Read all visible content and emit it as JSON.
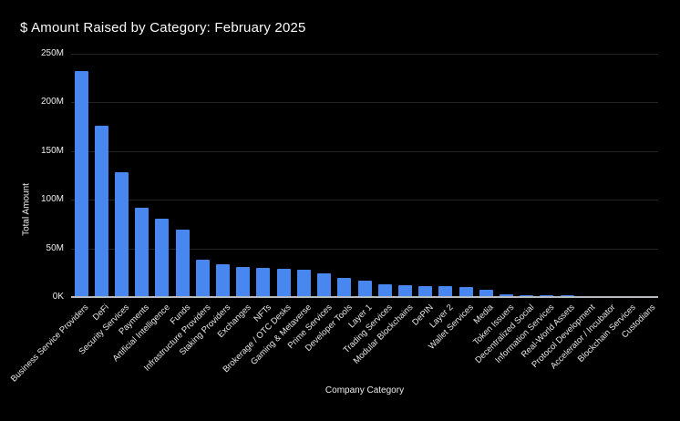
{
  "colors": {
    "background": "#000000",
    "bar": "#4886f0",
    "gridline": "#232323",
    "axis_line": "#b7bcc2",
    "text": "#eeeeee"
  },
  "chart_data": {
    "type": "bar",
    "title": "$ Amount Raised by Category: February 2025",
    "xlabel": "Company Category",
    "ylabel": "Total Amount",
    "ylim": [
      0,
      250
    ],
    "grid": true,
    "legend": false,
    "unit": "millions USD",
    "ytick_values": [
      0,
      50,
      100,
      150,
      200,
      250
    ],
    "ytick_labels": [
      "0K",
      "50M",
      "100M",
      "150M",
      "200M",
      "250M"
    ],
    "categories": [
      "Business Service Providers",
      "DeFi",
      "Security Services",
      "Payments",
      "Artificial Intelligence",
      "Funds",
      "Infrastructure Providers",
      "Staking Providers",
      "Exchanges",
      "NFTs",
      "Brokerage / OTC Desks",
      "Gaming & Metaverse",
      "Prime Services",
      "Developer Tools",
      "Layer 1",
      "Trading Services",
      "Modular Blockchains",
      "DePIN",
      "Layer 2",
      "Wallet Services",
      "Media",
      "Token Issuers",
      "Decentralized Social",
      "Information Services",
      "Real-World Assets",
      "Protocol Development",
      "Accelerator / Incubator",
      "Blockchain Services",
      "Custodians"
    ],
    "values": [
      232,
      176,
      128,
      92,
      81,
      69,
      38,
      34,
      30.5,
      30,
      29,
      28,
      24,
      20,
      17,
      13,
      12.5,
      11,
      11,
      10,
      7.5,
      2.5,
      1.8,
      1.8,
      1.5,
      1,
      0.4,
      0.3,
      0.2
    ]
  }
}
